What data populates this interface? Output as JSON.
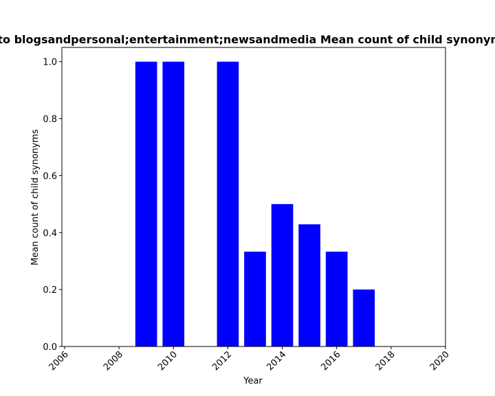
{
  "chart_data": {
    "type": "bar",
    "title": "to blogsandpersonal;entertainment;newsandmedia Mean count of child synonyms",
    "xlabel": "Year",
    "ylabel": "Mean count of child synonyms",
    "x": [
      2009,
      2010,
      2012,
      2013,
      2014,
      2015,
      2016,
      2017
    ],
    "values": [
      1.0,
      1.0,
      1.0,
      0.333,
      0.5,
      0.429,
      0.333,
      0.2
    ],
    "xlim": [
      2005.9,
      2020.0
    ],
    "ylim": [
      0,
      1.05
    ],
    "xticks": [
      2006,
      2008,
      2010,
      2012,
      2014,
      2016,
      2018,
      2020
    ],
    "yticks": [
      0.0,
      0.2,
      0.4,
      0.6,
      0.8,
      1.0
    ],
    "ytick_labels": [
      "0.0",
      "0.2",
      "0.4",
      "0.6",
      "0.8",
      "1.0"
    ],
    "bar_color": "#0000ff",
    "grid": false,
    "legend": "none"
  }
}
